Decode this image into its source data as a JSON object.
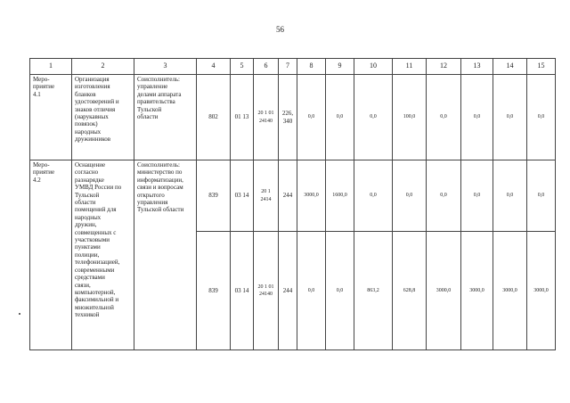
{
  "page_number": "56",
  "header": [
    "1",
    "2",
    "3",
    "4",
    "5",
    "6",
    "7",
    "8",
    "9",
    "10",
    "11",
    "12",
    "13",
    "14",
    "15"
  ],
  "rows": [
    {
      "event": "Меро-\nприятие\n4.1",
      "name": "Организация\nизготовления\nбланков\nудостоверений и\nзнаков отличия\n(нарукавных\nповязок)\nнародных\nдружинников",
      "executor": "Соисполнитель:\nуправление\nделами аппарата\nправительства\nТульской\nобласти",
      "lines": [
        {
          "grbs": "802",
          "rzpr": "01 13",
          "csr": "20 1 01 24140",
          "vr": "226, 340",
          "values": [
            "0,0",
            "0,0",
            "0,0",
            "100,0",
            "0,0",
            "0,0",
            "0,0",
            "0,0"
          ]
        }
      ]
    },
    {
      "event": "Меро-\nприятие\n4.2",
      "name": "Оснащение\nсогласно\nразнарядке\nУМВД России по\nТульской\nобласти\nпомещений для\nнародных\nдружин,\nсовмещенных с\nучастковыми\nпунктами\nполиции,\nтелефонизацией,\nсовременными\nсредствами\nсвязи,\nкомпьютерной,\nфаксимильной и\nмножительной\nтехникой",
      "executor": "Соисполнитель:\nминистерство по\nинформатизации,\nсвязи и вопросам\nоткрытого\nуправления\nТульской области",
      "lines": [
        {
          "grbs": "839",
          "rzpr": "03 14",
          "csr": "20 1 2414",
          "vr": "244",
          "values": [
            "3000,0",
            "1600,0",
            "0,0",
            "0,0",
            "0,0",
            "0,0",
            "0,0",
            "0,0"
          ]
        },
        {
          "grbs": "839",
          "rzpr": "03 14",
          "csr": "20 1 01 24140",
          "vr": "244",
          "values": [
            "0,0",
            "0,0",
            "863,2",
            "628,8",
            "3000,0",
            "3000,0",
            "3000,0",
            "3000,0"
          ]
        }
      ]
    }
  ]
}
